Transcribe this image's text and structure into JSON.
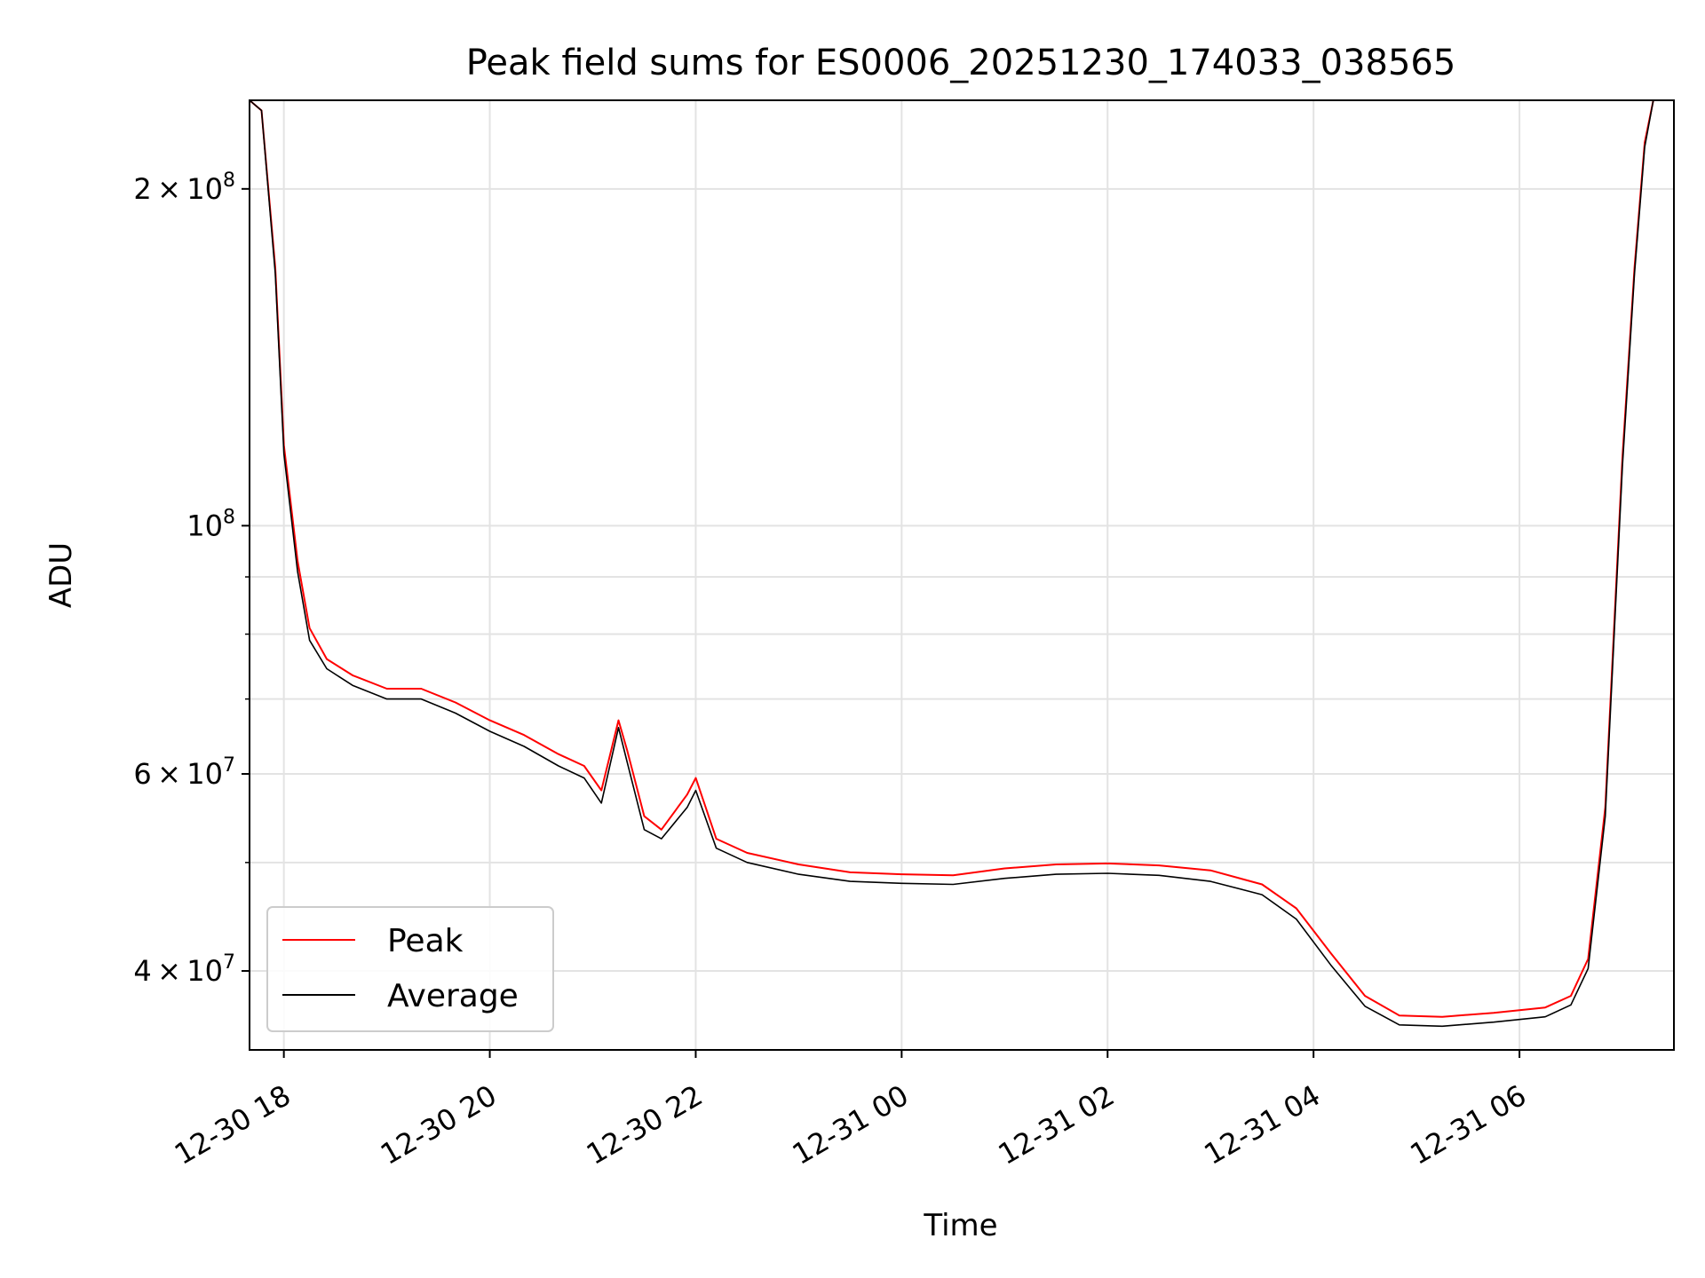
{
  "chart_data": {
    "type": "line",
    "title": "Peak field sums for ES0006_20251230_174033_038565",
    "xlabel": "Time",
    "ylabel": "ADU",
    "yscale": "log",
    "ylim": [
      34000000,
      240000000
    ],
    "xlim": [
      "2025-12-30 17:40",
      "2025-12-31 07:30"
    ],
    "grid": true,
    "legend_position": "lower-left",
    "x_ticks": [
      "12-30 18",
      "12-30 20",
      "12-30 22",
      "12-31 00",
      "12-31 02",
      "12-31 04",
      "12-31 06"
    ],
    "y_major_ticks": [
      {
        "value": 200000000,
        "mantissa": "2",
        "exponent": "8"
      },
      {
        "value": 100000000,
        "mantissa": "",
        "exponent": "8"
      },
      {
        "value": 60000000,
        "mantissa": "6",
        "exponent": "7"
      },
      {
        "value": 40000000,
        "mantissa": "4",
        "exponent": "7"
      }
    ],
    "y_minor_gridlines": [
      300000000,
      90000000,
      80000000,
      70000000,
      50000000
    ],
    "series": [
      {
        "name": "Peak",
        "color": "#ff0000",
        "points": [
          [
            "2025-12-30 17:40",
            240000000
          ],
          [
            "2025-12-30 17:47",
            235000000
          ],
          [
            "2025-12-30 17:55",
            170000000
          ],
          [
            "2025-12-30 18:00",
            118000000
          ],
          [
            "2025-12-30 18:08",
            93000000
          ],
          [
            "2025-12-30 18:15",
            81000000
          ],
          [
            "2025-12-30 18:25",
            76000000
          ],
          [
            "2025-12-30 18:40",
            73500000
          ],
          [
            "2025-12-30 19:00",
            71500000
          ],
          [
            "2025-12-30 19:20",
            71500000
          ],
          [
            "2025-12-30 19:40",
            69500000
          ],
          [
            "2025-12-30 20:00",
            67000000
          ],
          [
            "2025-12-30 20:20",
            65000000
          ],
          [
            "2025-12-30 20:40",
            62500000
          ],
          [
            "2025-12-30 20:55",
            61000000
          ],
          [
            "2025-12-30 21:05",
            58000000
          ],
          [
            "2025-12-30 21:15",
            67000000
          ],
          [
            "2025-12-30 21:20",
            63000000
          ],
          [
            "2025-12-30 21:30",
            55000000
          ],
          [
            "2025-12-30 21:40",
            53500000
          ],
          [
            "2025-12-30 21:55",
            57500000
          ],
          [
            "2025-12-30 22:00",
            59500000
          ],
          [
            "2025-12-30 22:12",
            52500000
          ],
          [
            "2025-12-30 22:30",
            51000000
          ],
          [
            "2025-12-30 23:00",
            49800000
          ],
          [
            "2025-12-30 23:30",
            49000000
          ],
          [
            "2025-12-31 00:00",
            48800000
          ],
          [
            "2025-12-31 00:30",
            48700000
          ],
          [
            "2025-12-31 01:00",
            49400000
          ],
          [
            "2025-12-31 01:30",
            49800000
          ],
          [
            "2025-12-31 02:00",
            49900000
          ],
          [
            "2025-12-31 02:30",
            49700000
          ],
          [
            "2025-12-31 03:00",
            49200000
          ],
          [
            "2025-12-31 03:30",
            47800000
          ],
          [
            "2025-12-31 03:50",
            45500000
          ],
          [
            "2025-12-31 04:10",
            41500000
          ],
          [
            "2025-12-31 04:30",
            38000000
          ],
          [
            "2025-12-31 04:50",
            36500000
          ],
          [
            "2025-12-31 05:15",
            36400000
          ],
          [
            "2025-12-31 05:45",
            36700000
          ],
          [
            "2025-12-31 06:15",
            37100000
          ],
          [
            "2025-12-31 06:30",
            38000000
          ],
          [
            "2025-12-31 06:40",
            41000000
          ],
          [
            "2025-12-31 06:50",
            56000000
          ],
          [
            "2025-12-31 07:00",
            115000000
          ],
          [
            "2025-12-31 07:07",
            170000000
          ],
          [
            "2025-12-31 07:13",
            220000000
          ],
          [
            "2025-12-31 07:18",
            240000000
          ],
          [
            "2025-12-31 07:30",
            240000000
          ]
        ]
      },
      {
        "name": "Average",
        "color": "#000000",
        "points": [
          [
            "2025-12-30 17:40",
            240000000
          ],
          [
            "2025-12-30 17:47",
            235000000
          ],
          [
            "2025-12-30 17:55",
            168000000
          ],
          [
            "2025-12-30 18:00",
            116000000
          ],
          [
            "2025-12-30 18:08",
            91000000
          ],
          [
            "2025-12-30 18:15",
            79000000
          ],
          [
            "2025-12-30 18:25",
            74500000
          ],
          [
            "2025-12-30 18:40",
            72000000
          ],
          [
            "2025-12-30 19:00",
            70000000
          ],
          [
            "2025-12-30 19:20",
            70000000
          ],
          [
            "2025-12-30 19:40",
            68000000
          ],
          [
            "2025-12-30 20:00",
            65500000
          ],
          [
            "2025-12-30 20:20",
            63500000
          ],
          [
            "2025-12-30 20:40",
            61000000
          ],
          [
            "2025-12-30 20:55",
            59500000
          ],
          [
            "2025-12-30 21:05",
            56500000
          ],
          [
            "2025-12-30 21:15",
            66000000
          ],
          [
            "2025-12-30 21:20",
            61500000
          ],
          [
            "2025-12-30 21:30",
            53500000
          ],
          [
            "2025-12-30 21:40",
            52500000
          ],
          [
            "2025-12-30 21:55",
            56000000
          ],
          [
            "2025-12-30 22:00",
            58000000
          ],
          [
            "2025-12-30 22:12",
            51500000
          ],
          [
            "2025-12-30 22:30",
            50000000
          ],
          [
            "2025-12-30 23:00",
            48800000
          ],
          [
            "2025-12-30 23:30",
            48100000
          ],
          [
            "2025-12-31 00:00",
            47900000
          ],
          [
            "2025-12-31 00:30",
            47800000
          ],
          [
            "2025-12-31 01:00",
            48400000
          ],
          [
            "2025-12-31 01:30",
            48800000
          ],
          [
            "2025-12-31 02:00",
            48900000
          ],
          [
            "2025-12-31 02:30",
            48700000
          ],
          [
            "2025-12-31 03:00",
            48100000
          ],
          [
            "2025-12-31 03:30",
            46800000
          ],
          [
            "2025-12-31 03:50",
            44500000
          ],
          [
            "2025-12-31 04:10",
            40500000
          ],
          [
            "2025-12-31 04:30",
            37200000
          ],
          [
            "2025-12-31 04:50",
            35800000
          ],
          [
            "2025-12-31 05:15",
            35700000
          ],
          [
            "2025-12-31 05:45",
            36000000
          ],
          [
            "2025-12-31 06:15",
            36400000
          ],
          [
            "2025-12-31 06:30",
            37300000
          ],
          [
            "2025-12-31 06:40",
            40200000
          ],
          [
            "2025-12-31 06:50",
            55000000
          ],
          [
            "2025-12-31 07:00",
            113000000
          ],
          [
            "2025-12-31 07:07",
            168000000
          ],
          [
            "2025-12-31 07:13",
            218000000
          ],
          [
            "2025-12-31 07:18",
            240000000
          ],
          [
            "2025-12-31 07:30",
            240000000
          ]
        ]
      }
    ]
  }
}
